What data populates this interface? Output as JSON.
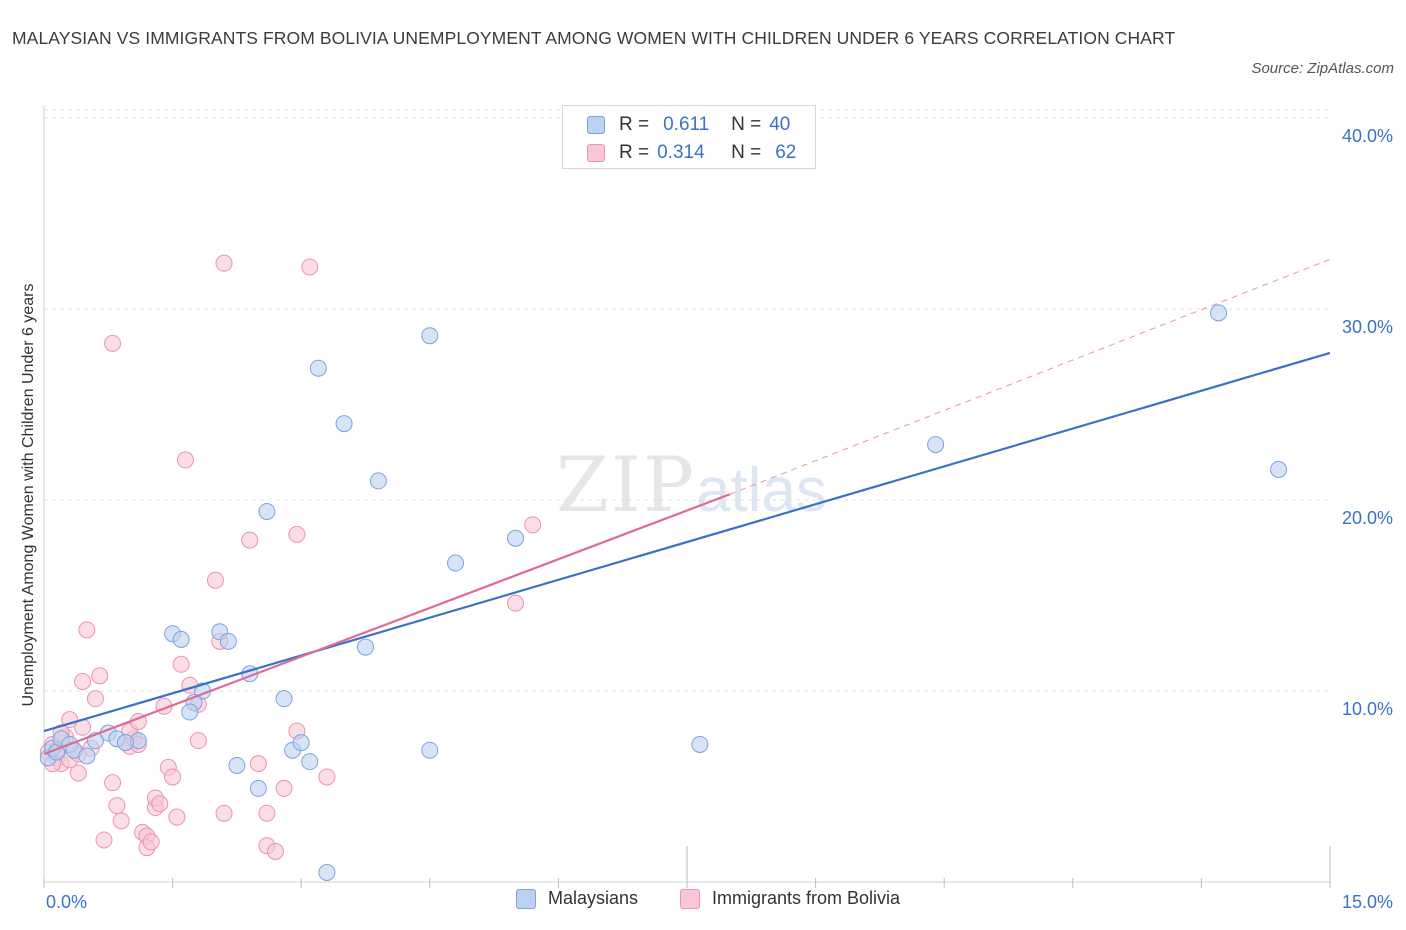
{
  "title": "MALAYSIAN VS IMMIGRANTS FROM BOLIVIA UNEMPLOYMENT AMONG WOMEN WITH CHILDREN UNDER 6 YEARS CORRELATION CHART",
  "source": "Source: ZipAtlas.com",
  "watermark": {
    "zip": "ZIP",
    "atlas": "atlas"
  },
  "legend": {
    "r_label": "R =",
    "n_label": "N =",
    "rows": [
      {
        "r": "0.611",
        "n": "40"
      },
      {
        "r": "0.314",
        "n": "62"
      }
    ]
  },
  "colors": {
    "blue_fill": "#bcd2f3",
    "blue_stroke": "#7ba3de",
    "blue_line": "#3a72c6",
    "pink_fill": "#f8c6d6",
    "pink_stroke": "#eb93b0",
    "pink_line": "#e06a96",
    "grid": "#e3e3e3",
    "axis_text": "#3a72c6"
  },
  "chart_data": {
    "type": "scatter",
    "title": "MALAYSIAN VS IMMIGRANTS FROM BOLIVIA UNEMPLOYMENT AMONG WOMEN WITH CHILDREN UNDER 6 YEARS CORRELATION CHART",
    "xlabel": "",
    "ylabel": "Unemployment Among Women with Children Under 6 years",
    "xlim": [
      0,
      15
    ],
    "ylim": [
      0,
      40
    ],
    "x_tick_labels": [
      "0.0%",
      "15.0%"
    ],
    "y_ticks": [
      10,
      20,
      30,
      40
    ],
    "y_tick_labels": [
      "10.0%",
      "20.0%",
      "30.0%",
      "40.0%"
    ],
    "legend_position": "top-center",
    "series": [
      {
        "name": "Malaysians",
        "r": 0.611,
        "n": 40,
        "trend": {
          "x": [
            0,
            15
          ],
          "y": [
            7.9,
            27.7
          ],
          "style": "solid"
        },
        "points": [
          [
            0.05,
            6.5
          ],
          [
            0.1,
            7.0
          ],
          [
            0.15,
            6.8
          ],
          [
            0.2,
            7.5
          ],
          [
            0.3,
            7.2
          ],
          [
            0.35,
            6.9
          ],
          [
            0.5,
            6.6
          ],
          [
            0.6,
            7.4
          ],
          [
            0.75,
            7.8
          ],
          [
            0.85,
            7.5
          ],
          [
            1.1,
            7.4
          ],
          [
            0.95,
            7.3
          ],
          [
            1.5,
            13.0
          ],
          [
            1.6,
            12.7
          ],
          [
            2.05,
            13.1
          ],
          [
            2.15,
            12.6
          ],
          [
            2.4,
            10.9
          ],
          [
            1.85,
            10.0
          ],
          [
            1.75,
            9.4
          ],
          [
            1.7,
            8.9
          ],
          [
            2.6,
            19.4
          ],
          [
            2.8,
            9.6
          ],
          [
            2.9,
            6.9
          ],
          [
            3.0,
            7.3
          ],
          [
            3.1,
            6.3
          ],
          [
            2.25,
            6.1
          ],
          [
            2.5,
            4.9
          ],
          [
            3.2,
            26.9
          ],
          [
            3.5,
            24.0
          ],
          [
            3.9,
            21.0
          ],
          [
            3.75,
            12.3
          ],
          [
            4.5,
            28.6
          ],
          [
            4.8,
            16.7
          ],
          [
            5.5,
            18.0
          ],
          [
            4.5,
            6.9
          ],
          [
            7.65,
            7.2
          ],
          [
            10.4,
            22.9
          ],
          [
            13.7,
            29.8
          ],
          [
            14.4,
            21.6
          ],
          [
            3.3,
            0.5
          ]
        ]
      },
      {
        "name": "Immigrants from Bolivia",
        "r": 0.314,
        "n": 62,
        "trend": {
          "x": [
            0,
            8.0
          ],
          "y": [
            6.7,
            20.3
          ],
          "style": "solid",
          "extension": {
            "x": [
              8.0,
              15
            ],
            "y": [
              20.3,
              32.6
            ],
            "style": "dashed"
          }
        },
        "points": [
          [
            0.05,
            6.8
          ],
          [
            0.1,
            7.2
          ],
          [
            0.15,
            6.5
          ],
          [
            0.2,
            6.2
          ],
          [
            0.25,
            7.6
          ],
          [
            0.3,
            8.5
          ],
          [
            0.35,
            6.9
          ],
          [
            0.4,
            5.7
          ],
          [
            0.45,
            8.1
          ],
          [
            0.55,
            7.0
          ],
          [
            0.6,
            9.6
          ],
          [
            0.65,
            10.8
          ],
          [
            0.45,
            10.5
          ],
          [
            0.5,
            13.2
          ],
          [
            0.8,
            5.2
          ],
          [
            0.85,
            4.0
          ],
          [
            0.9,
            3.2
          ],
          [
            0.7,
            2.2
          ],
          [
            0.95,
            7.3
          ],
          [
            1.0,
            7.1
          ],
          [
            1.05,
            7.5
          ],
          [
            1.0,
            7.9
          ],
          [
            1.1,
            8.4
          ],
          [
            1.15,
            2.6
          ],
          [
            1.2,
            2.4
          ],
          [
            1.2,
            1.8
          ],
          [
            1.25,
            2.1
          ],
          [
            1.3,
            3.9
          ],
          [
            1.3,
            4.4
          ],
          [
            1.35,
            4.1
          ],
          [
            1.4,
            9.2
          ],
          [
            1.45,
            6.0
          ],
          [
            1.5,
            5.5
          ],
          [
            1.55,
            3.4
          ],
          [
            1.6,
            11.4
          ],
          [
            1.65,
            22.1
          ],
          [
            1.7,
            10.3
          ],
          [
            1.8,
            7.4
          ],
          [
            2.0,
            15.8
          ],
          [
            2.05,
            12.6
          ],
          [
            2.1,
            3.6
          ],
          [
            2.4,
            17.9
          ],
          [
            2.5,
            6.2
          ],
          [
            2.6,
            3.6
          ],
          [
            2.6,
            1.9
          ],
          [
            2.7,
            1.6
          ],
          [
            2.8,
            4.9
          ],
          [
            2.95,
            18.2
          ],
          [
            2.95,
            7.9
          ],
          [
            3.3,
            5.5
          ],
          [
            2.1,
            32.4
          ],
          [
            3.1,
            32.2
          ],
          [
            0.8,
            28.2
          ],
          [
            5.7,
            18.7
          ],
          [
            5.5,
            14.6
          ],
          [
            0.1,
            6.2
          ],
          [
            0.2,
            7.8
          ],
          [
            0.3,
            6.4
          ],
          [
            0.15,
            6.9
          ],
          [
            0.4,
            6.7
          ],
          [
            1.8,
            9.3
          ],
          [
            1.1,
            7.2
          ]
        ]
      }
    ]
  },
  "bottom_legend": [
    "Malaysians",
    "Immigrants from Bolivia"
  ]
}
